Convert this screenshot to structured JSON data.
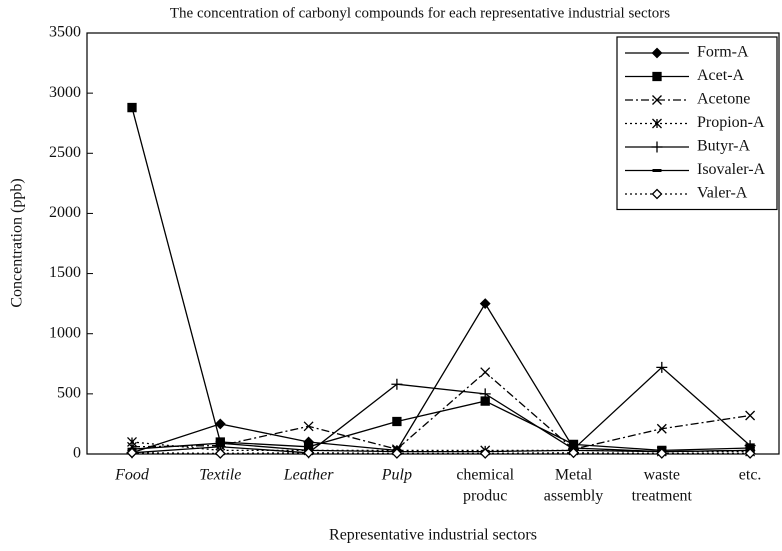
{
  "chart_data": {
    "type": "line",
    "title": "The concentration of carbonyl compounds for each representative industrial sectors",
    "x_label": "Representative industrial sectors",
    "y_label": "Concentration (ppb)",
    "categories": [
      [
        "Food"
      ],
      [
        "Textile"
      ],
      [
        "Leather"
      ],
      [
        "Pulp"
      ],
      [
        "chemical",
        "produc"
      ],
      [
        "Metal",
        "assembly"
      ],
      [
        "waste",
        "treatment"
      ],
      [
        "etc."
      ]
    ],
    "ylim": [
      0,
      3500
    ],
    "yticks": [
      0,
      500,
      1000,
      1500,
      2000,
      2500,
      3000,
      3500
    ],
    "legend": "upper right",
    "series": [
      {
        "name": "Form-A",
        "color": "#000000",
        "marker": "diamond",
        "dash": "solid",
        "values": [
          10,
          250,
          100,
          30,
          1250,
          50,
          20,
          30
        ]
      },
      {
        "name": "Acet-A",
        "color": "#000000",
        "marker": "square",
        "dash": "solid",
        "values": [
          2880,
          100,
          60,
          270,
          440,
          80,
          30,
          50
        ]
      },
      {
        "name": "Acetone",
        "color": "#000000",
        "marker": "x",
        "dash": "dashdot",
        "values": [
          60,
          70,
          230,
          40,
          680,
          40,
          210,
          320
        ]
      },
      {
        "name": "Propion-A",
        "color": "#000000",
        "marker": "asterisk",
        "dash": "dotted",
        "values": [
          100,
          30,
          30,
          30,
          30,
          30,
          20,
          20
        ]
      },
      {
        "name": "Butyr-A",
        "color": "#000000",
        "marker": "plus",
        "dash": "solid",
        "values": [
          10,
          60,
          10,
          580,
          500,
          40,
          720,
          70
        ]
      },
      {
        "name": "Isovaler-A",
        "color": "#000000",
        "marker": "dash",
        "dash": "solid",
        "values": [
          40,
          90,
          30,
          20,
          20,
          30,
          20,
          30
        ]
      },
      {
        "name": "Valer-A",
        "color": "#000000",
        "marker": "open-diamond",
        "dash": "dotted",
        "values": [
          10,
          5,
          10,
          5,
          5,
          10,
          5,
          5
        ]
      }
    ]
  }
}
